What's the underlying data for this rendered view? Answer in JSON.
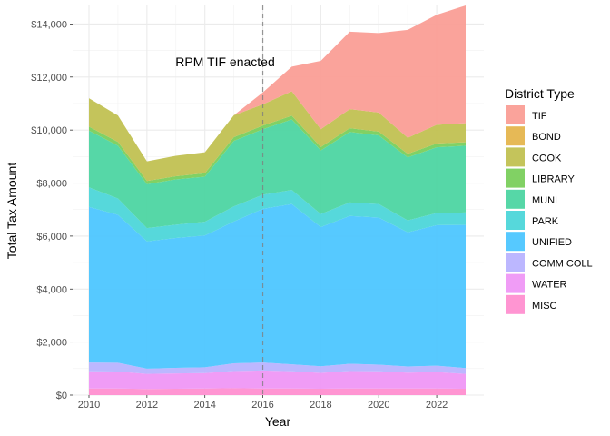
{
  "chart_data": {
    "type": "area",
    "stacked": true,
    "title": "",
    "xlabel": "Year",
    "ylabel": "Total Tax Amount",
    "x": [
      2010,
      2011,
      2012,
      2013,
      2014,
      2015,
      2016,
      2017,
      2018,
      2019,
      2020,
      2021,
      2022,
      2023
    ],
    "xlim": [
      2010,
      2023
    ],
    "ylim": [
      0,
      14700
    ],
    "x_ticks": [
      2010,
      2012,
      2014,
      2016,
      2018,
      2020,
      2022
    ],
    "x_tick_labels": [
      "2010",
      "2012",
      "2014",
      "2016",
      "2018",
      "2020",
      "2022"
    ],
    "y_ticks": [
      0,
      2000,
      4000,
      6000,
      8000,
      10000,
      12000,
      14000
    ],
    "y_tick_labels": [
      "$0",
      "$2,000",
      "$4,000",
      "$6,000",
      "$8,000",
      "$10,000",
      "$12,000",
      "$14,000"
    ],
    "grid": true,
    "legend": {
      "title": "District Type",
      "position": "right"
    },
    "series": [
      {
        "name": "MISC",
        "color": "#FF8FD0",
        "values": [
          250,
          250,
          230,
          240,
          250,
          260,
          250,
          250,
          240,
          250,
          250,
          250,
          250,
          240
        ]
      },
      {
        "name": "WATER",
        "color": "#EF97F5",
        "values": [
          650,
          640,
          570,
          580,
          580,
          650,
          680,
          650,
          600,
          660,
          650,
          600,
          620,
          560
        ]
      },
      {
        "name": "COMM COLL",
        "color": "#B8B3FF",
        "values": [
          330,
          330,
          200,
          210,
          220,
          290,
          300,
          260,
          250,
          270,
          250,
          230,
          240,
          220
        ]
      },
      {
        "name": "UNIFIED",
        "color": "#4DC6FF",
        "values": [
          5870,
          5580,
          4800,
          4900,
          4970,
          5350,
          5800,
          6050,
          5250,
          5580,
          5550,
          5060,
          5300,
          5400
        ]
      },
      {
        "name": "PARK",
        "color": "#4DD6D9",
        "values": [
          740,
          620,
          500,
          500,
          520,
          570,
          530,
          530,
          490,
          510,
          510,
          450,
          460,
          470
        ]
      },
      {
        "name": "MUNI",
        "color": "#4DD5A2",
        "values": [
          2140,
          1990,
          1660,
          1710,
          1700,
          2470,
          2470,
          2660,
          2400,
          2660,
          2590,
          2380,
          2480,
          2520
        ]
      },
      {
        "name": "LIBRARY",
        "color": "#7ACF5C",
        "values": [
          150,
          140,
          120,
          120,
          130,
          140,
          140,
          140,
          130,
          140,
          140,
          130,
          140,
          130
        ]
      },
      {
        "name": "COOK",
        "color": "#C1C152",
        "values": [
          1070,
          1000,
          740,
          770,
          790,
          830,
          800,
          920,
          670,
          720,
          720,
          610,
          710,
          720
        ]
      },
      {
        "name": "BOND",
        "color": "#E5B54D",
        "values": [
          0,
          0,
          0,
          0,
          0,
          0,
          0,
          0,
          0,
          0,
          0,
          0,
          0,
          0
        ]
      },
      {
        "name": "TIF",
        "color": "#FA9E96",
        "values": [
          0,
          0,
          0,
          0,
          0,
          0,
          450,
          930,
          2580,
          2920,
          3000,
          4070,
          4150,
          4440
        ]
      }
    ],
    "annotations": [
      {
        "type": "vline",
        "x": 2016,
        "style": "dashed",
        "color": "#808080"
      },
      {
        "type": "text",
        "x": 2014.7,
        "y": 12400,
        "text": "RPM TIF enacted"
      }
    ]
  }
}
